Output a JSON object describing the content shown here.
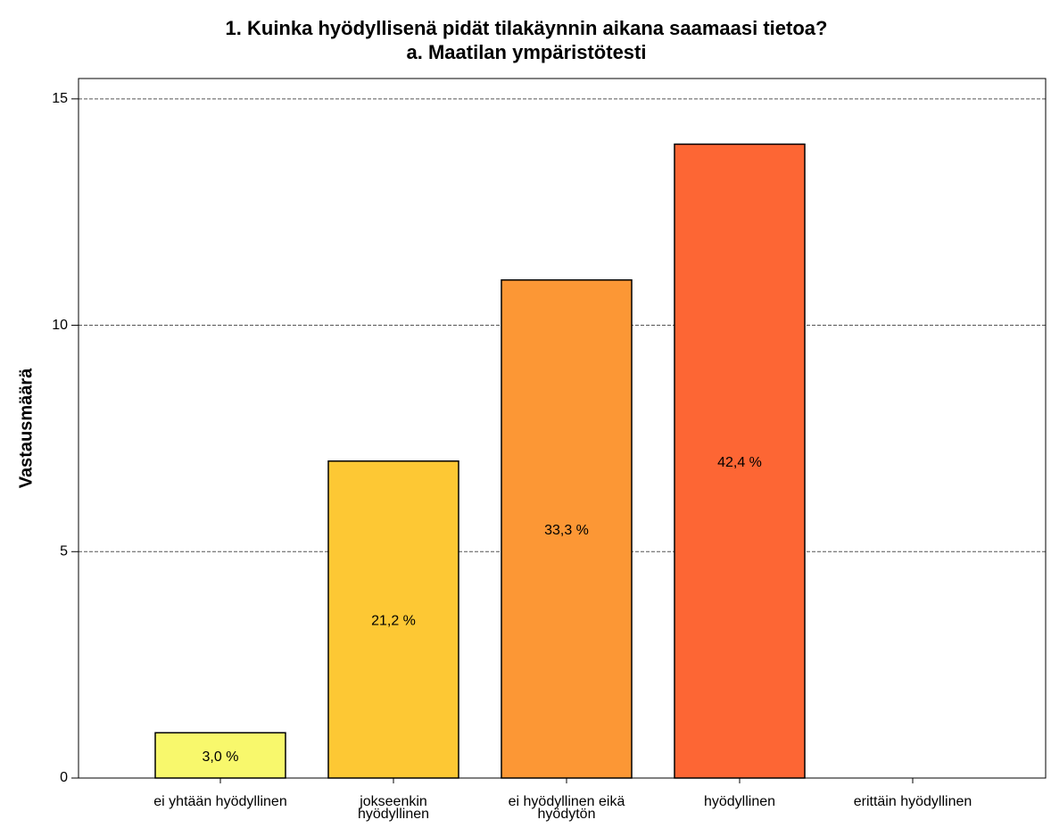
{
  "chart_data": {
    "type": "bar",
    "title": "1. Kuinka hyödyllisenä pidät tilakäynnin aikana saamaasi tietoa?",
    "subtitle": "a. Maatilan ympäristötesti",
    "y_label": "Vastausmäärä",
    "categories": [
      "ei yhtään hyödyllinen",
      "jokseenkin hyödyllinen",
      "ei hyödyllinen eikä hyödytön",
      "hyödyllinen",
      "erittäin hyödyllinen"
    ],
    "values": [
      1,
      7,
      11,
      14,
      0
    ],
    "percent_labels": [
      "3,0 %",
      "21,2 %",
      "33,3 %",
      "42,4 %",
      null
    ],
    "colors": [
      "#f8f86c",
      "#fdc834",
      "#fc9735",
      "#fd6634",
      "#fd4a34"
    ],
    "ylim": [
      0,
      15.45
    ],
    "yticks": [
      0,
      5,
      10,
      15
    ],
    "grid": true
  }
}
